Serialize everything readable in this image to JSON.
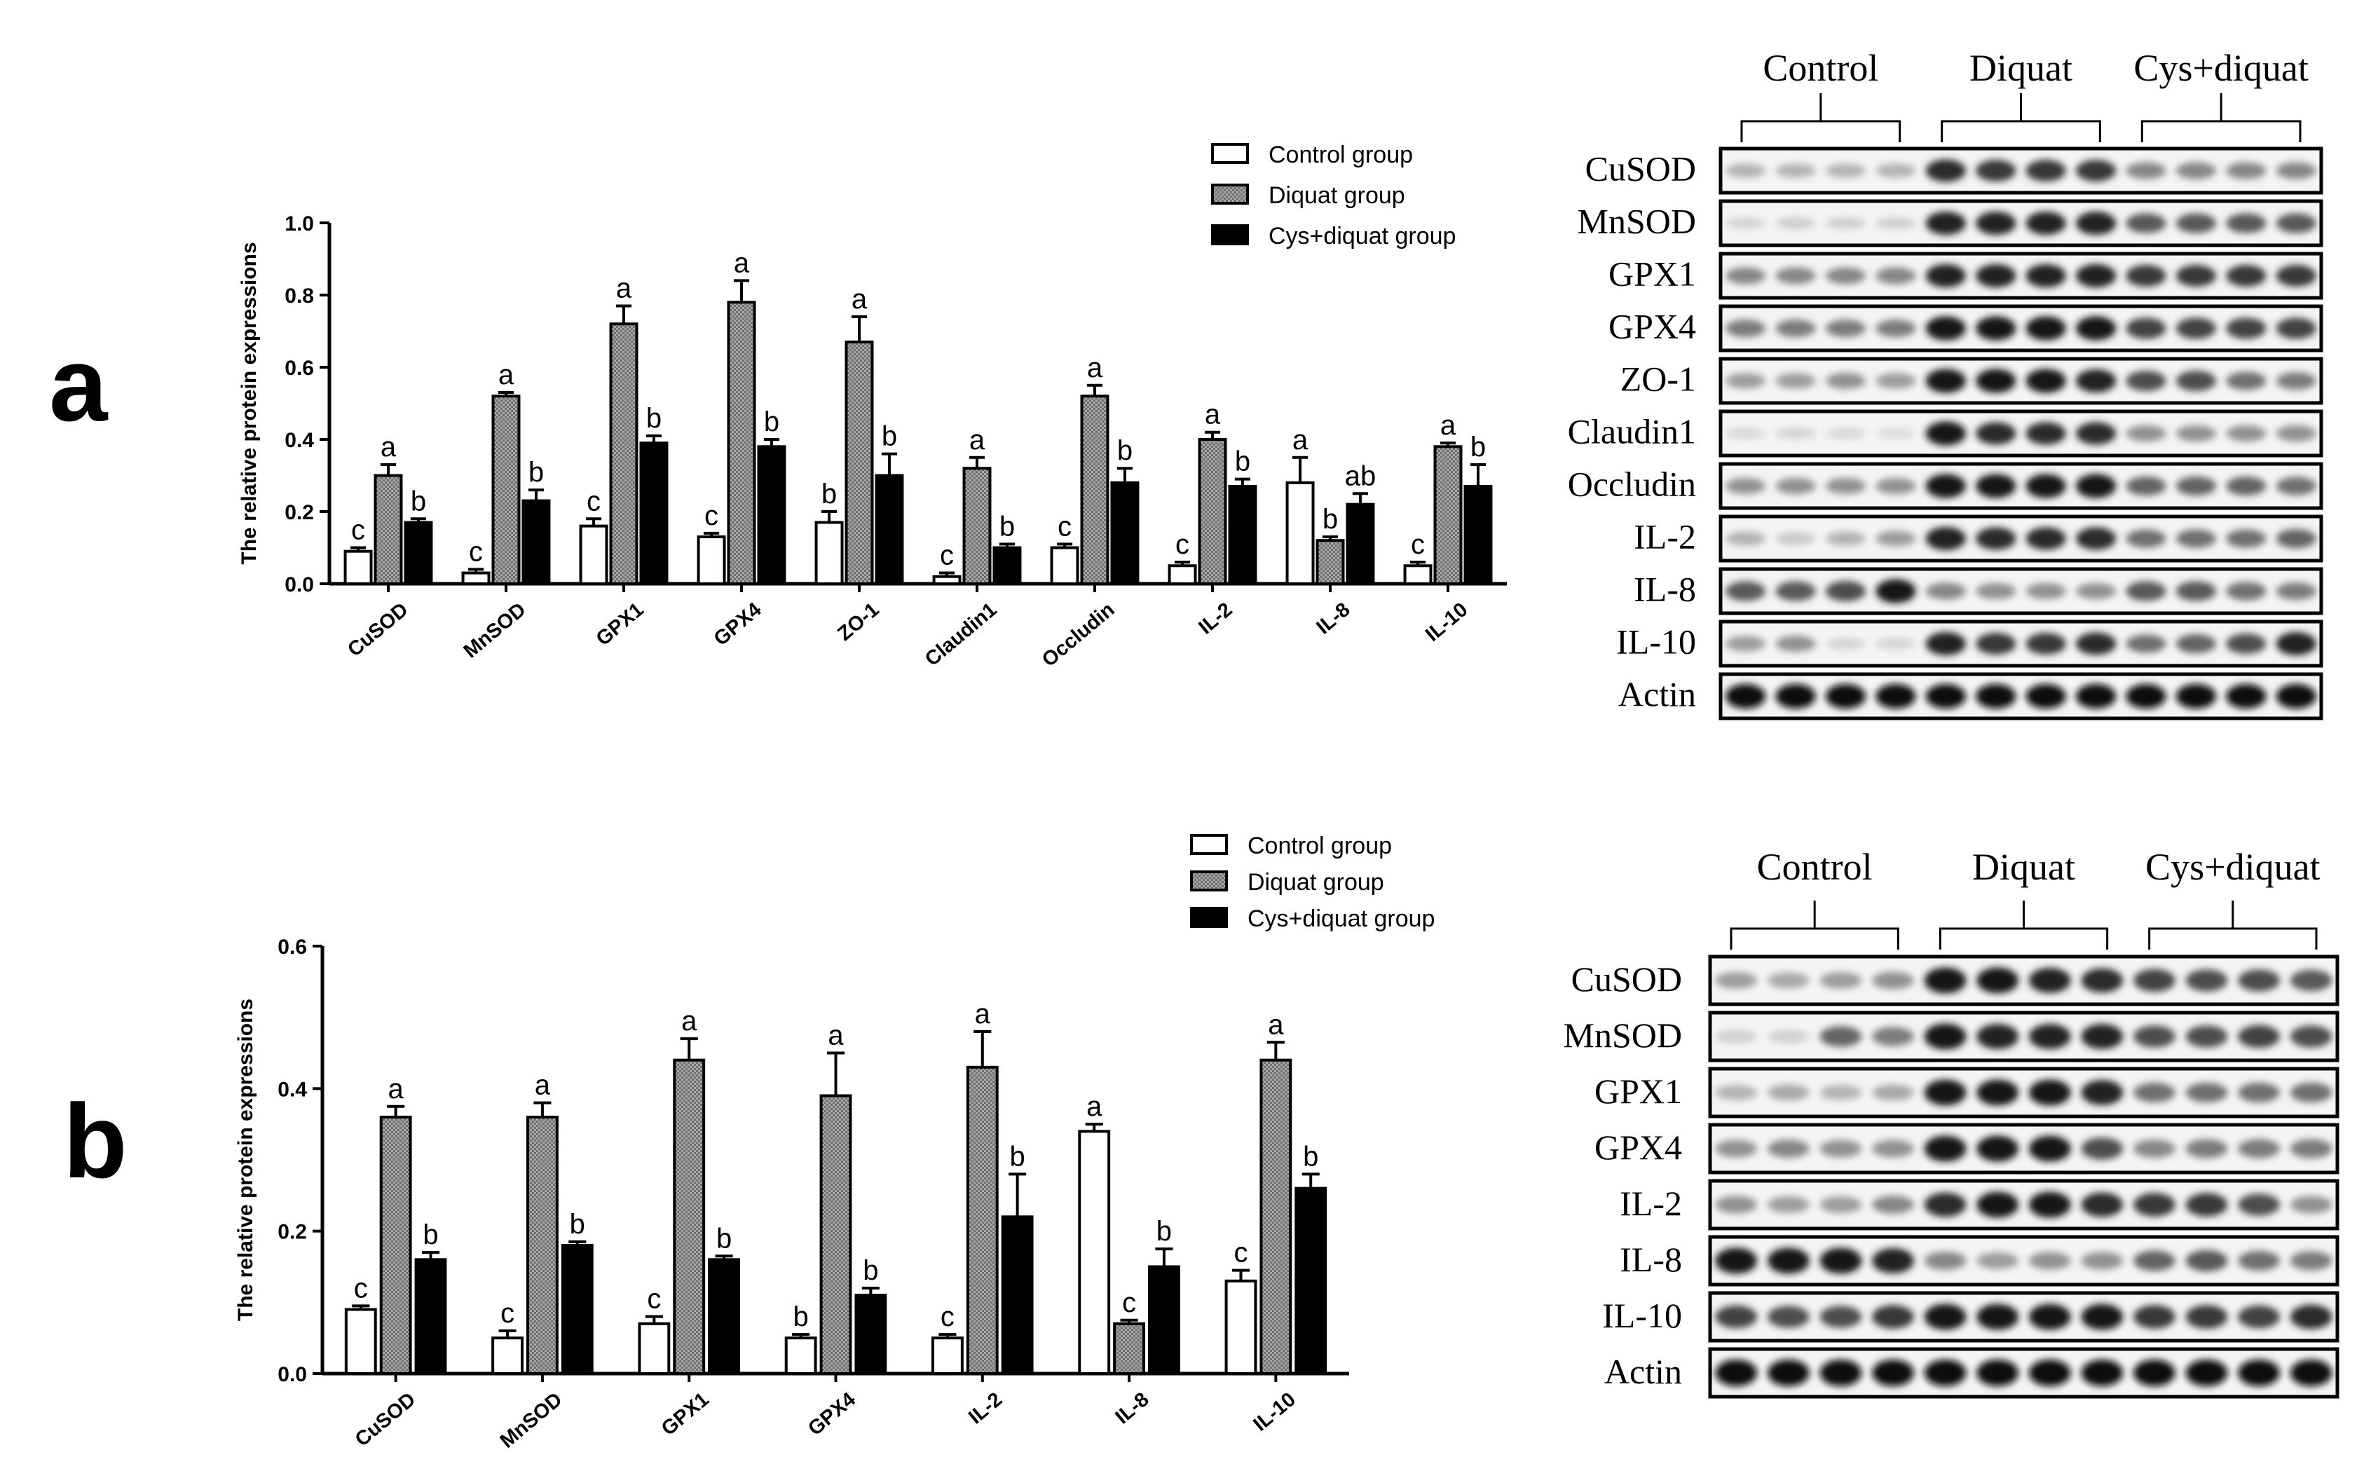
{
  "panels": [
    {
      "label": "a",
      "chart_data": {
        "type": "bar",
        "ylabel": "The relative protein expressions",
        "ylim": [
          0,
          1.0
        ],
        "yticks": [
          "0.0",
          "0.2",
          "0.4",
          "0.6",
          "0.8",
          "1.0"
        ],
        "categories": [
          "CuSOD",
          "MnSOD",
          "GPX1",
          "GPX4",
          "ZO-1",
          "Claudin1",
          "Occludin",
          "IL-2",
          "IL-8",
          "IL-10"
        ],
        "series": [
          {
            "name": "Control group",
            "values": [
              0.09,
              0.03,
              0.16,
              0.13,
              0.17,
              0.02,
              0.1,
              0.05,
              0.28,
              0.05
            ],
            "err": [
              0.01,
              0.01,
              0.02,
              0.01,
              0.03,
              0.01,
              0.01,
              0.01,
              0.07,
              0.01
            ],
            "letters": [
              "c",
              "c",
              "c",
              "c",
              "b",
              "c",
              "c",
              "c",
              "a",
              "c"
            ]
          },
          {
            "name": "Diquat group",
            "values": [
              0.3,
              0.52,
              0.72,
              0.78,
              0.67,
              0.32,
              0.52,
              0.4,
              0.12,
              0.38
            ],
            "err": [
              0.03,
              0.01,
              0.05,
              0.06,
              0.07,
              0.03,
              0.03,
              0.02,
              0.01,
              0.01
            ],
            "letters": [
              "a",
              "a",
              "a",
              "a",
              "a",
              "a",
              "a",
              "a",
              "b",
              "a"
            ]
          },
          {
            "name": "Cys+diquat group",
            "values": [
              0.17,
              0.23,
              0.39,
              0.38,
              0.3,
              0.1,
              0.28,
              0.27,
              0.22,
              0.27
            ],
            "err": [
              0.01,
              0.03,
              0.02,
              0.02,
              0.06,
              0.01,
              0.04,
              0.02,
              0.03,
              0.06
            ],
            "letters": [
              "b",
              "b",
              "b",
              "b",
              "b",
              "b",
              "b",
              "b",
              "ab",
              "b"
            ]
          }
        ]
      },
      "blot": {
        "groups": [
          "Control",
          "Diquat",
          "Cys+diquat"
        ],
        "rows": [
          "CuSOD",
          "MnSOD",
          "GPX1",
          "GPX4",
          "ZO-1",
          "Claudin1",
          "Occludin",
          "IL-2",
          "IL-8",
          "IL-10",
          "Actin"
        ],
        "intensity": [
          [
            0.25,
            0.25,
            0.25,
            0.25,
            0.85,
            0.8,
            0.8,
            0.8,
            0.45,
            0.45,
            0.45,
            0.45
          ],
          [
            0.1,
            0.12,
            0.12,
            0.12,
            0.9,
            0.9,
            0.9,
            0.9,
            0.65,
            0.65,
            0.65,
            0.65
          ],
          [
            0.45,
            0.45,
            0.45,
            0.45,
            0.9,
            0.9,
            0.9,
            0.9,
            0.8,
            0.8,
            0.8,
            0.8
          ],
          [
            0.5,
            0.5,
            0.5,
            0.5,
            0.95,
            0.95,
            0.95,
            0.95,
            0.75,
            0.75,
            0.75,
            0.75
          ],
          [
            0.35,
            0.35,
            0.4,
            0.35,
            0.95,
            0.95,
            0.95,
            0.9,
            0.7,
            0.7,
            0.55,
            0.5
          ],
          [
            0.08,
            0.1,
            0.08,
            0.06,
            0.95,
            0.85,
            0.85,
            0.85,
            0.4,
            0.4,
            0.4,
            0.4
          ],
          [
            0.4,
            0.4,
            0.4,
            0.4,
            0.95,
            0.95,
            0.95,
            0.95,
            0.6,
            0.6,
            0.6,
            0.55
          ],
          [
            0.25,
            0.15,
            0.25,
            0.35,
            0.9,
            0.85,
            0.85,
            0.85,
            0.55,
            0.55,
            0.55,
            0.6
          ],
          [
            0.65,
            0.65,
            0.7,
            0.95,
            0.45,
            0.4,
            0.4,
            0.4,
            0.65,
            0.65,
            0.55,
            0.5
          ],
          [
            0.35,
            0.4,
            0.1,
            0.1,
            0.9,
            0.8,
            0.8,
            0.85,
            0.55,
            0.6,
            0.7,
            0.9
          ],
          [
            1,
            1,
            1,
            1,
            1,
            1,
            1,
            1,
            1,
            1,
            1,
            1
          ]
        ]
      }
    },
    {
      "label": "b",
      "chart_data": {
        "type": "bar",
        "ylabel": "The relative protein expressions",
        "ylim": [
          0,
          0.6
        ],
        "yticks": [
          "0.0",
          "0.2",
          "0.4",
          "0.6"
        ],
        "categories": [
          "CuSOD",
          "MnSOD",
          "GPX1",
          "GPX4",
          "IL-2",
          "IL-8",
          "IL-10"
        ],
        "series": [
          {
            "name": "Control group",
            "values": [
              0.09,
              0.05,
              0.07,
              0.05,
              0.05,
              0.34,
              0.13
            ],
            "err": [
              0.005,
              0.01,
              0.01,
              0.005,
              0.005,
              0.01,
              0.015
            ],
            "letters": [
              "c",
              "c",
              "c",
              "b",
              "c",
              "a",
              "c"
            ]
          },
          {
            "name": "Diquat group",
            "values": [
              0.36,
              0.36,
              0.44,
              0.39,
              0.43,
              0.07,
              0.44
            ],
            "err": [
              0.015,
              0.02,
              0.03,
              0.06,
              0.05,
              0.005,
              0.025
            ],
            "letters": [
              "a",
              "a",
              "a",
              "a",
              "a",
              "c",
              "a"
            ]
          },
          {
            "name": "Cys+diquat group",
            "values": [
              0.16,
              0.18,
              0.16,
              0.11,
              0.22,
              0.15,
              0.26
            ],
            "err": [
              0.01,
              0.005,
              0.005,
              0.01,
              0.06,
              0.025,
              0.02
            ],
            "letters": [
              "b",
              "b",
              "b",
              "b",
              "b",
              "b",
              "b"
            ]
          }
        ]
      },
      "blot": {
        "groups": [
          "Control",
          "Diquat",
          "Cys+diquat"
        ],
        "rows": [
          "CuSOD",
          "MnSOD",
          "GPX1",
          "GPX4",
          "IL-2",
          "IL-8",
          "IL-10",
          "Actin"
        ],
        "intensity": [
          [
            0.35,
            0.3,
            0.35,
            0.4,
            0.95,
            0.95,
            0.9,
            0.85,
            0.75,
            0.7,
            0.7,
            0.65
          ],
          [
            0.12,
            0.12,
            0.6,
            0.5,
            0.95,
            0.9,
            0.9,
            0.9,
            0.7,
            0.7,
            0.75,
            0.7
          ],
          [
            0.25,
            0.3,
            0.25,
            0.3,
            0.95,
            0.95,
            0.95,
            0.9,
            0.55,
            0.55,
            0.55,
            0.55
          ],
          [
            0.4,
            0.45,
            0.4,
            0.4,
            0.95,
            0.95,
            0.95,
            0.7,
            0.45,
            0.5,
            0.5,
            0.5
          ],
          [
            0.4,
            0.35,
            0.35,
            0.45,
            0.85,
            0.95,
            0.95,
            0.85,
            0.8,
            0.8,
            0.7,
            0.4
          ],
          [
            0.95,
            0.95,
            0.95,
            0.9,
            0.45,
            0.35,
            0.4,
            0.4,
            0.6,
            0.65,
            0.55,
            0.5
          ],
          [
            0.75,
            0.7,
            0.7,
            0.8,
            0.95,
            0.95,
            0.95,
            0.95,
            0.8,
            0.8,
            0.75,
            0.85
          ],
          [
            1,
            1,
            1,
            1,
            1,
            1,
            1,
            1,
            1,
            1,
            1,
            1
          ]
        ]
      }
    }
  ],
  "colors": {
    "ink": "#000000",
    "control_fill": "#ffffff",
    "diquat_fill": "#9a9a9a",
    "cys_fill": "#000000"
  }
}
